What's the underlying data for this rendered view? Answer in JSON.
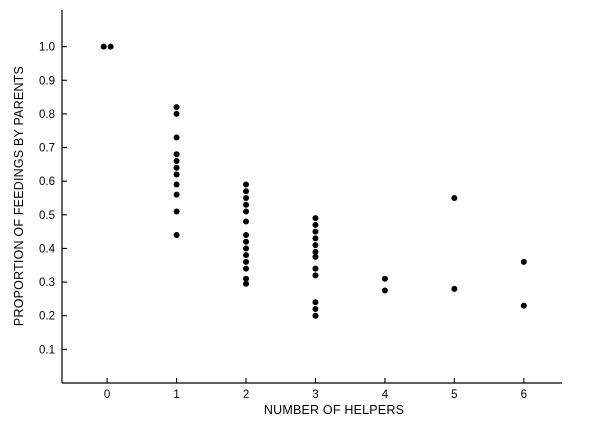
{
  "chart_data": {
    "type": "scatter",
    "title": "",
    "xlabel": "NUMBER OF HELPERS",
    "ylabel": "PROPORTION OF FEEDINGS BY PARENTS",
    "xlim": [
      -0.65,
      6.55
    ],
    "ylim": [
      0.0,
      1.1
    ],
    "xticks": [
      0,
      1,
      2,
      3,
      4,
      5,
      6
    ],
    "xtick_labels": [
      "0",
      "1",
      "2",
      "3",
      "4",
      "5",
      "6"
    ],
    "yticks": [
      0.1,
      0.2,
      0.3,
      0.4,
      0.5,
      0.6,
      0.7,
      0.8,
      0.9,
      1.0
    ],
    "ytick_labels": [
      "0.1",
      "0.2",
      "0.3",
      "0.4",
      "0.5",
      "0.6",
      "0.7",
      "0.8",
      "0.9",
      "1.0"
    ],
    "grid": false,
    "legend": "none",
    "marker_color": "#000000",
    "series": [
      {
        "points": [
          [
            -0.05,
            1.0
          ],
          [
            0.05,
            1.0
          ],
          [
            1,
            0.82
          ],
          [
            1,
            0.8
          ],
          [
            1,
            0.73
          ],
          [
            1,
            0.68
          ],
          [
            1,
            0.66
          ],
          [
            1,
            0.64
          ],
          [
            1,
            0.62
          ],
          [
            1,
            0.59
          ],
          [
            1,
            0.56
          ],
          [
            1,
            0.51
          ],
          [
            1,
            0.44
          ],
          [
            2,
            0.59
          ],
          [
            2,
            0.57
          ],
          [
            2,
            0.55
          ],
          [
            2,
            0.53
          ],
          [
            2,
            0.51
          ],
          [
            2,
            0.48
          ],
          [
            2,
            0.44
          ],
          [
            2,
            0.42
          ],
          [
            2,
            0.4
          ],
          [
            2,
            0.38
          ],
          [
            2,
            0.36
          ],
          [
            2,
            0.34
          ],
          [
            2,
            0.31
          ],
          [
            2,
            0.295
          ],
          [
            3,
            0.49
          ],
          [
            3,
            0.47
          ],
          [
            3,
            0.45
          ],
          [
            3,
            0.43
          ],
          [
            3,
            0.41
          ],
          [
            3,
            0.39
          ],
          [
            3,
            0.375
          ],
          [
            3,
            0.34
          ],
          [
            3,
            0.32
          ],
          [
            3,
            0.24
          ],
          [
            3,
            0.22
          ],
          [
            3,
            0.2
          ],
          [
            4,
            0.31
          ],
          [
            4,
            0.275
          ],
          [
            5,
            0.55
          ],
          [
            5,
            0.28
          ],
          [
            6,
            0.36
          ],
          [
            6,
            0.23
          ]
        ]
      }
    ]
  }
}
